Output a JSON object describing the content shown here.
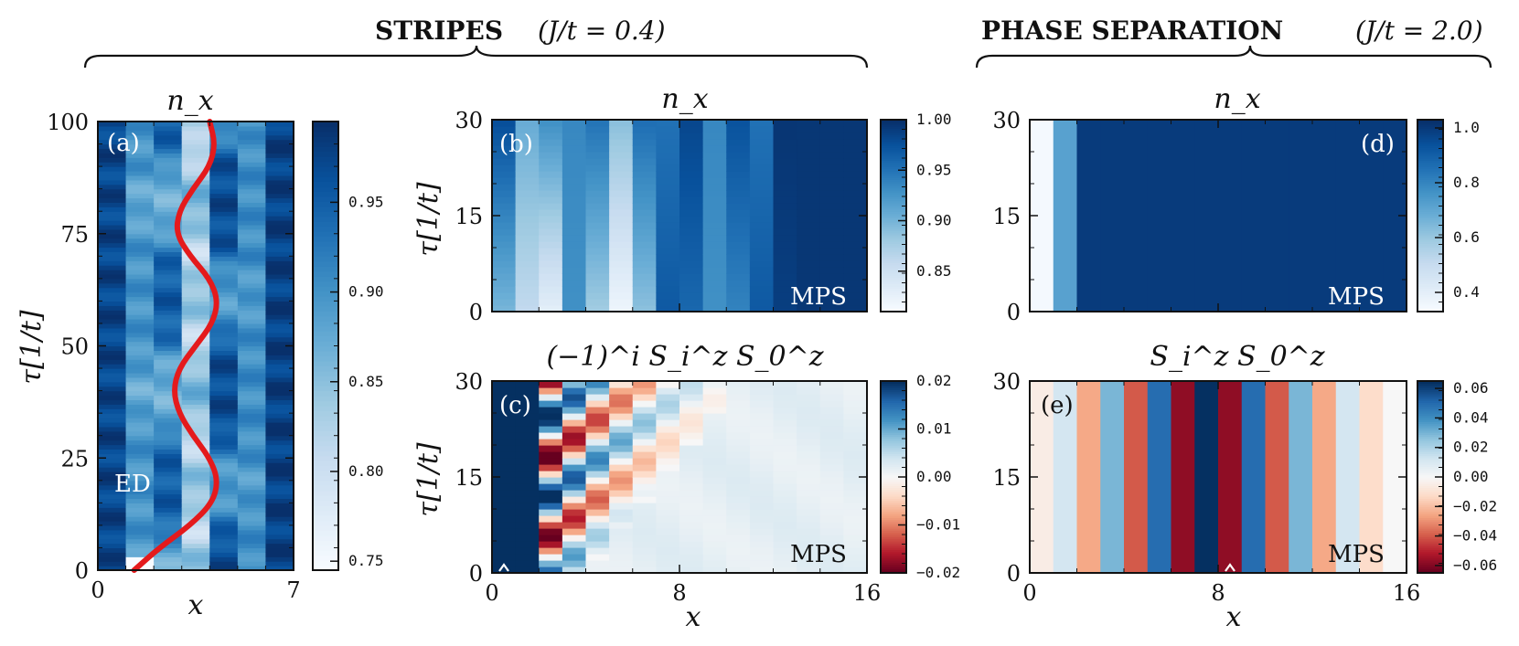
{
  "headers": {
    "left_title": "STRIPES",
    "left_param": "(J/t = 0.4)",
    "right_title": "PHASE SEPARATION",
    "right_param": "(J/t = 2.0)"
  },
  "chart_data": [
    {
      "id": "a",
      "type": "heatmap",
      "panel_label": "(a)",
      "title": "n_x",
      "xlabel": "x",
      "ylabel": "τ[1/t]",
      "xlim": [
        0,
        7
      ],
      "ylim": [
        0,
        100
      ],
      "x_ticks": [
        "0",
        "7"
      ],
      "y_ticks": [
        "0",
        "25",
        "50",
        "75",
        "100"
      ],
      "colorbar": {
        "range": [
          0.745,
          0.995
        ],
        "ticks": [
          "0.75",
          "0.80",
          "0.85",
          "0.90",
          "0.95"
        ],
        "cmap": "Blues"
      },
      "method_label": "ED",
      "overlay_line": {
        "color": "#e41a1c",
        "description": "oscillating red trajectory",
        "tau": [
          0,
          5,
          10,
          15,
          20,
          25,
          30,
          35,
          40,
          45,
          50,
          55,
          60,
          65,
          70,
          75,
          80,
          85,
          90,
          95,
          100
        ],
        "x": [
          1.3,
          2.2,
          3.3,
          4.1,
          4.3,
          4.0,
          3.4,
          2.9,
          2.7,
          2.9,
          3.5,
          4.1,
          4.3,
          4.0,
          3.3,
          2.8,
          2.9,
          3.4,
          4.0,
          4.2,
          4.0
        ]
      }
    },
    {
      "id": "b",
      "type": "heatmap",
      "panel_label": "(b)",
      "title": "n_x",
      "xlabel": "",
      "ylabel": "τ[1/t]",
      "xlim": [
        0,
        16
      ],
      "ylim": [
        0,
        30
      ],
      "y_ticks": [
        "0",
        "15",
        "30"
      ],
      "colorbar": {
        "range": [
          0.81,
          1.0
        ],
        "ticks": [
          "0.85",
          "0.90",
          "0.95",
          "1.00"
        ],
        "cmap": "Blues"
      },
      "method_label": "MPS"
    },
    {
      "id": "c",
      "type": "heatmap",
      "panel_label": "(c)",
      "title": "(−1)^i S_i^z S_0^z",
      "xlabel": "x",
      "ylabel": "τ[1/t]",
      "xlim": [
        0,
        16
      ],
      "ylim": [
        0,
        30
      ],
      "x_ticks": [
        "0",
        "8",
        "16"
      ],
      "y_ticks": [
        "0",
        "15",
        "30"
      ],
      "colorbar": {
        "range": [
          -0.02,
          0.02
        ],
        "ticks": [
          "−0.02",
          "−0.01",
          "0.00",
          "0.01",
          "0.02"
        ],
        "cmap": "RdBu"
      },
      "method_label": "MPS"
    },
    {
      "id": "d",
      "type": "heatmap",
      "panel_label": "(d)",
      "title": "n_x",
      "xlabel": "",
      "ylabel": "",
      "xlim": [
        0,
        16
      ],
      "ylim": [
        0,
        30
      ],
      "y_ticks": [
        "0",
        "15",
        "30"
      ],
      "colorbar": {
        "range": [
          0.33,
          1.03
        ],
        "ticks": [
          "0.4",
          "0.6",
          "0.8",
          "1.0"
        ],
        "cmap": "Blues"
      },
      "method_label": "MPS",
      "column_values": [
        0.34,
        0.72,
        1.0,
        1.0,
        1.0,
        1.0,
        1.0,
        1.0,
        1.0,
        1.0,
        1.0,
        1.0,
        1.0,
        1.0,
        1.0,
        1.0
      ]
    },
    {
      "id": "e",
      "type": "heatmap",
      "panel_label": "(e)",
      "title": "S_i^z S_0^z",
      "xlabel": "x",
      "ylabel": "",
      "xlim": [
        0,
        16
      ],
      "ylim": [
        0,
        30
      ],
      "x_ticks": [
        "0",
        "8",
        "16"
      ],
      "y_ticks": [
        "0",
        "15",
        "30"
      ],
      "colorbar": {
        "range": [
          -0.065,
          0.065
        ],
        "ticks": [
          "−0.06",
          "−0.04",
          "−0.02",
          "0.00",
          "0.02",
          "0.04",
          "0.06"
        ],
        "cmap": "RdBu"
      },
      "method_label": "MPS",
      "column_values": [
        -0.005,
        0.012,
        -0.025,
        0.03,
        -0.04,
        0.05,
        -0.058,
        0.065,
        -0.058,
        0.05,
        -0.04,
        0.03,
        -0.025,
        0.012,
        -0.012,
        0.0
      ]
    }
  ]
}
